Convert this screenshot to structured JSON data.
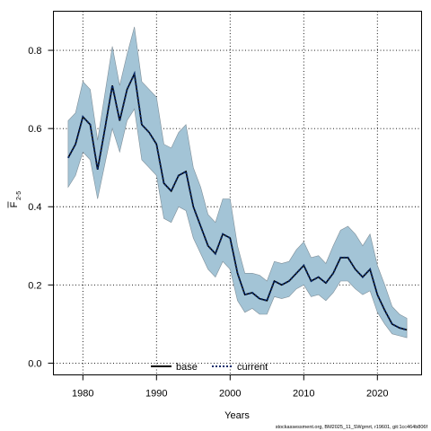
{
  "chart_data": {
    "type": "line",
    "xlabel": "Years",
    "ylabel": "F",
    "ylabel_subscript": "2-5",
    "xlim": [
      1976,
      2026
    ],
    "ylim": [
      -0.03,
      0.9
    ],
    "x_ticks": [
      1980,
      1990,
      2000,
      2010,
      2020
    ],
    "y_ticks": [
      0.0,
      0.2,
      0.4,
      0.6,
      0.8
    ],
    "y_tick_labels": [
      "0.0",
      "0.2",
      "0.4",
      "0.6",
      "0.8"
    ],
    "grid": true,
    "legend_position": "bottom",
    "series": [
      {
        "name": "base",
        "color": "#000000",
        "style": "solid",
        "x": [
          1978,
          1979,
          1980,
          1981,
          1982,
          1983,
          1984,
          1985,
          1986,
          1987,
          1988,
          1989,
          1990,
          1991,
          1992,
          1993,
          1994,
          1995,
          1996,
          1997,
          1998,
          1999,
          2000,
          2001,
          2002,
          2003,
          2004,
          2005,
          2006,
          2007,
          2008,
          2009,
          2010,
          2011,
          2012,
          2013,
          2014,
          2015,
          2016,
          2017,
          2018,
          2019,
          2020,
          2021,
          2022,
          2023,
          2024
        ],
        "y": [
          0.525,
          0.56,
          0.63,
          0.61,
          0.495,
          0.6,
          0.71,
          0.62,
          0.7,
          0.74,
          0.61,
          0.59,
          0.56,
          0.46,
          0.44,
          0.48,
          0.49,
          0.4,
          0.35,
          0.3,
          0.28,
          0.33,
          0.32,
          0.23,
          0.175,
          0.18,
          0.165,
          0.16,
          0.21,
          0.2,
          0.21,
          0.23,
          0.25,
          0.21,
          0.22,
          0.205,
          0.23,
          0.27,
          0.27,
          0.24,
          0.22,
          0.24,
          0.175,
          0.135,
          0.1,
          0.09,
          0.085
        ]
      },
      {
        "name": "current",
        "color": "#0a2a6a",
        "style": "dotted",
        "x": [
          1978,
          1979,
          1980,
          1981,
          1982,
          1983,
          1984,
          1985,
          1986,
          1987,
          1988,
          1989,
          1990,
          1991,
          1992,
          1993,
          1994,
          1995,
          1996,
          1997,
          1998,
          1999,
          2000,
          2001,
          2002,
          2003,
          2004,
          2005,
          2006,
          2007,
          2008,
          2009,
          2010,
          2011,
          2012,
          2013,
          2014,
          2015,
          2016,
          2017,
          2018,
          2019,
          2020,
          2021,
          2022,
          2023,
          2024
        ],
        "y": [
          0.525,
          0.56,
          0.63,
          0.61,
          0.495,
          0.6,
          0.71,
          0.62,
          0.7,
          0.74,
          0.61,
          0.59,
          0.56,
          0.46,
          0.44,
          0.48,
          0.49,
          0.4,
          0.35,
          0.3,
          0.28,
          0.33,
          0.32,
          0.23,
          0.175,
          0.18,
          0.165,
          0.16,
          0.21,
          0.2,
          0.21,
          0.23,
          0.25,
          0.21,
          0.22,
          0.205,
          0.23,
          0.27,
          0.27,
          0.24,
          0.22,
          0.24,
          0.175,
          0.135,
          0.1,
          0.09,
          0.085
        ]
      }
    ],
    "band": {
      "color": "#a3c4d6",
      "edge_color": "#7f8f99",
      "x": [
        1978,
        1979,
        1980,
        1981,
        1982,
        1983,
        1984,
        1985,
        1986,
        1987,
        1988,
        1989,
        1990,
        1991,
        1992,
        1993,
        1994,
        1995,
        1996,
        1997,
        1998,
        1999,
        2000,
        2001,
        2002,
        2003,
        2004,
        2005,
        2006,
        2007,
        2008,
        2009,
        2010,
        2011,
        2012,
        2013,
        2014,
        2015,
        2016,
        2017,
        2018,
        2019,
        2020,
        2021,
        2022,
        2023,
        2024
      ],
      "lower": [
        0.45,
        0.48,
        0.54,
        0.52,
        0.42,
        0.51,
        0.6,
        0.54,
        0.62,
        0.65,
        0.52,
        0.5,
        0.48,
        0.37,
        0.36,
        0.4,
        0.39,
        0.32,
        0.28,
        0.24,
        0.22,
        0.26,
        0.24,
        0.16,
        0.13,
        0.14,
        0.125,
        0.125,
        0.17,
        0.165,
        0.17,
        0.19,
        0.2,
        0.17,
        0.175,
        0.16,
        0.18,
        0.21,
        0.21,
        0.19,
        0.175,
        0.185,
        0.13,
        0.1,
        0.075,
        0.07,
        0.065
      ],
      "upper": [
        0.62,
        0.64,
        0.72,
        0.7,
        0.57,
        0.69,
        0.81,
        0.71,
        0.79,
        0.86,
        0.72,
        0.7,
        0.68,
        0.56,
        0.55,
        0.59,
        0.61,
        0.5,
        0.45,
        0.38,
        0.36,
        0.42,
        0.42,
        0.3,
        0.23,
        0.23,
        0.225,
        0.21,
        0.26,
        0.255,
        0.26,
        0.29,
        0.31,
        0.27,
        0.275,
        0.255,
        0.3,
        0.34,
        0.35,
        0.33,
        0.3,
        0.33,
        0.25,
        0.2,
        0.145,
        0.125,
        0.115
      ]
    }
  },
  "footer_text": "stockassessment.org, BM2025_11_SWgrnrt, r19601, git:1cc464b806f"
}
